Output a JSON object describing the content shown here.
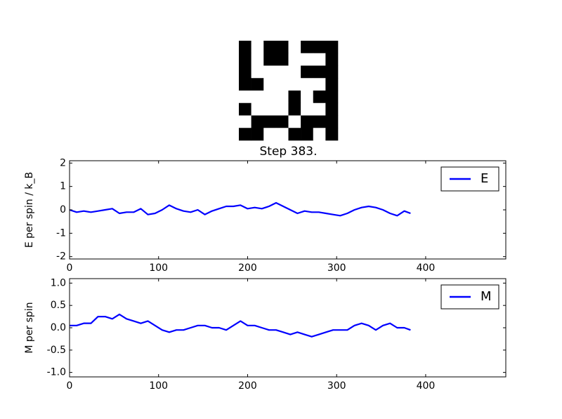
{
  "chart_data": [
    {
      "type": "image",
      "title": "Step 383.",
      "colors": [
        "#ffffff",
        "#000000"
      ],
      "values": [
        [
          1,
          0,
          1,
          1,
          0,
          1,
          1,
          1
        ],
        [
          1,
          0,
          1,
          1,
          0,
          0,
          0,
          1
        ],
        [
          1,
          0,
          0,
          0,
          0,
          1,
          1,
          1
        ],
        [
          1,
          1,
          0,
          0,
          0,
          0,
          0,
          1
        ],
        [
          0,
          0,
          0,
          0,
          1,
          0,
          1,
          1
        ],
        [
          1,
          0,
          0,
          0,
          1,
          0,
          0,
          1
        ],
        [
          0,
          1,
          1,
          1,
          0,
          1,
          1,
          1
        ],
        [
          1,
          1,
          0,
          0,
          1,
          1,
          0,
          1
        ]
      ]
    },
    {
      "type": "line",
      "ylabel": "E per spin / k_B",
      "legend": "upper right",
      "xlim": [
        0,
        490
      ],
      "xticks": [
        0,
        100,
        200,
        300,
        400
      ],
      "ylim": [
        -2.1,
        2.1
      ],
      "yticks": [
        -2,
        -1,
        0,
        1,
        2
      ],
      "x": [
        0,
        8,
        16,
        24,
        32,
        40,
        48,
        56,
        64,
        72,
        80,
        88,
        96,
        104,
        112,
        120,
        128,
        136,
        144,
        152,
        160,
        168,
        176,
        184,
        192,
        200,
        208,
        216,
        224,
        232,
        240,
        248,
        256,
        264,
        272,
        280,
        288,
        296,
        304,
        312,
        320,
        328,
        336,
        344,
        352,
        360,
        368,
        376,
        383
      ],
      "series": [
        {
          "name": "E",
          "color": "#0000ff",
          "values": [
            0.0,
            -0.1,
            -0.05,
            -0.1,
            -0.05,
            0.0,
            0.05,
            -0.15,
            -0.1,
            -0.1,
            0.05,
            -0.2,
            -0.15,
            0.0,
            0.2,
            0.05,
            -0.05,
            -0.1,
            0.0,
            -0.2,
            -0.05,
            0.05,
            0.15,
            0.15,
            0.2,
            0.05,
            0.1,
            0.05,
            0.15,
            0.3,
            0.15,
            0.0,
            -0.15,
            -0.05,
            -0.1,
            -0.1,
            -0.15,
            -0.2,
            -0.25,
            -0.15,
            0.0,
            0.1,
            0.15,
            0.1,
            0.0,
            -0.15,
            -0.25,
            -0.05,
            -0.15
          ]
        }
      ]
    },
    {
      "type": "line",
      "ylabel": "M per spin",
      "legend": "upper right",
      "xlim": [
        0,
        490
      ],
      "xticks": [
        0,
        100,
        200,
        300,
        400
      ],
      "ylim": [
        -1.1,
        1.1
      ],
      "yticks": [
        {
          "value": -1,
          "label": "-1.0"
        },
        {
          "value": -0.5,
          "label": "-0.5"
        },
        {
          "value": 0,
          "label": "0.0"
        },
        {
          "value": 0.5,
          "label": "0.5"
        },
        {
          "value": 1,
          "label": "1.0"
        }
      ],
      "x": [
        0,
        8,
        16,
        24,
        32,
        40,
        48,
        56,
        64,
        72,
        80,
        88,
        96,
        104,
        112,
        120,
        128,
        136,
        144,
        152,
        160,
        168,
        176,
        184,
        192,
        200,
        208,
        216,
        224,
        232,
        240,
        248,
        256,
        264,
        272,
        280,
        288,
        296,
        304,
        312,
        320,
        328,
        336,
        344,
        352,
        360,
        368,
        376,
        383
      ],
      "series": [
        {
          "name": "M",
          "color": "#0000ff",
          "values": [
            0.05,
            0.05,
            0.1,
            0.1,
            0.25,
            0.25,
            0.2,
            0.3,
            0.2,
            0.15,
            0.1,
            0.15,
            0.05,
            -0.05,
            -0.1,
            -0.05,
            -0.05,
            0.0,
            0.05,
            0.05,
            0.0,
            0.0,
            -0.05,
            0.05,
            0.15,
            0.05,
            0.05,
            0.0,
            -0.05,
            -0.05,
            -0.1,
            -0.15,
            -0.1,
            -0.15,
            -0.2,
            -0.15,
            -0.1,
            -0.05,
            -0.05,
            -0.05,
            0.05,
            0.1,
            0.05,
            -0.05,
            0.05,
            0.1,
            0.0,
            0.0,
            -0.05
          ]
        }
      ]
    }
  ]
}
